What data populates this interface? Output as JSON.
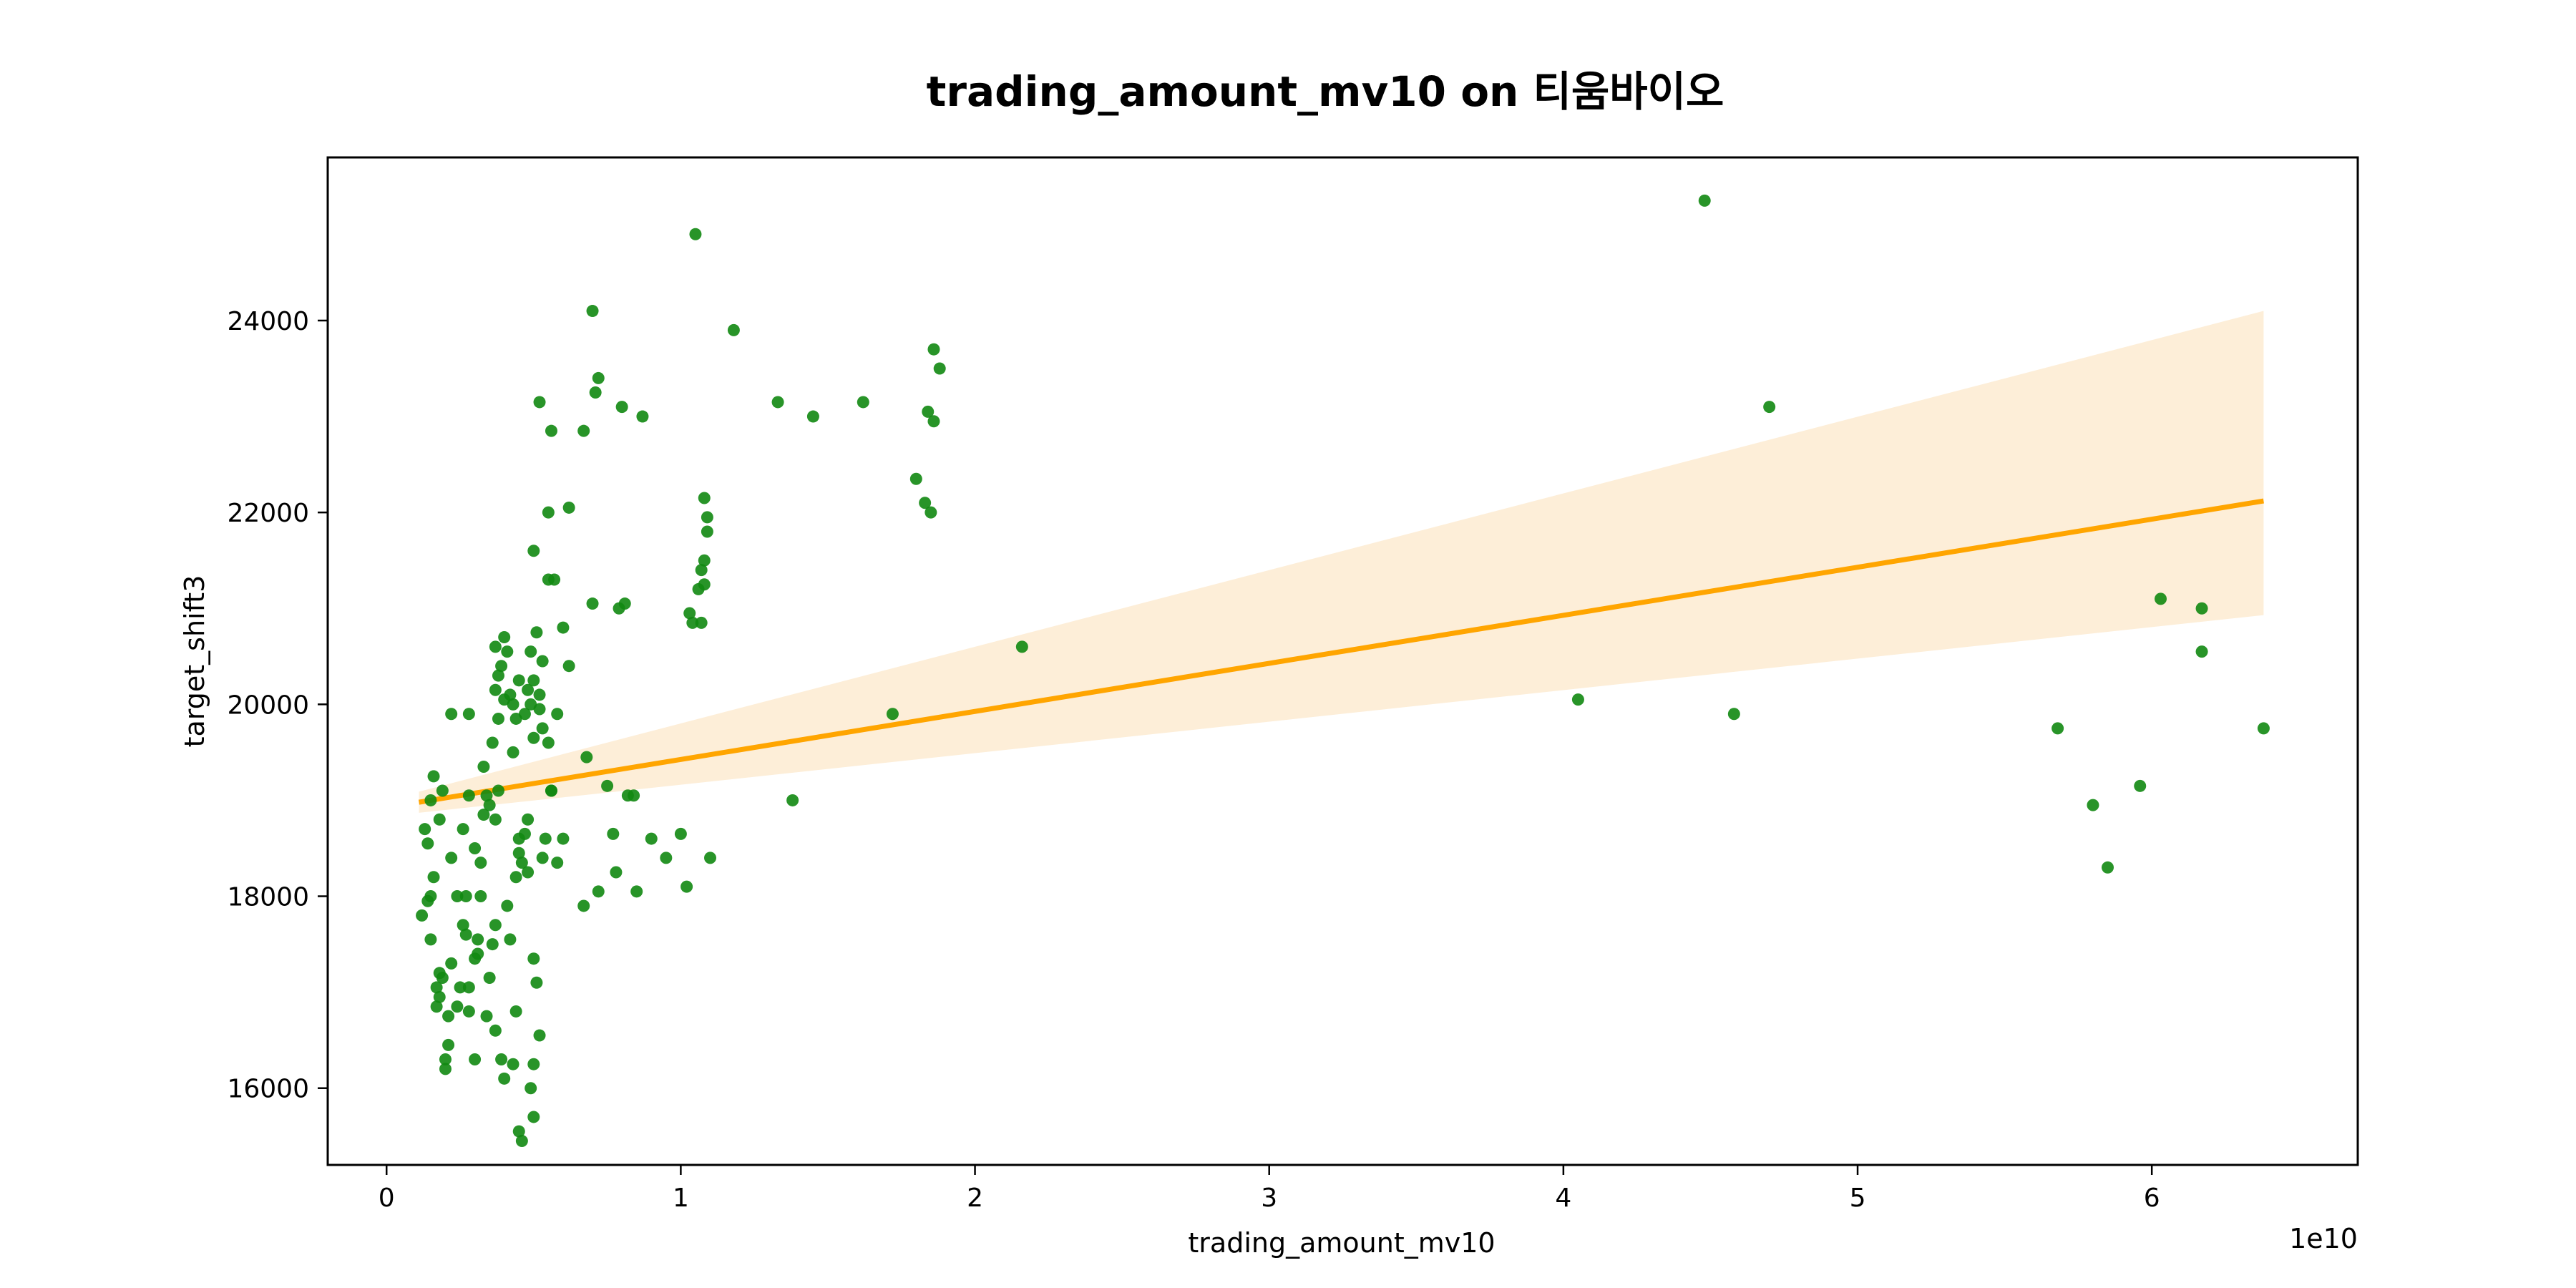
{
  "chart_data": {
    "type": "scatter",
    "title": "trading_amount_mv10 on 티움바이오",
    "xlabel": "trading_amount_mv10",
    "ylabel": "target_shift3",
    "x_offset_label": "1e10",
    "xlim": [
      -0.2,
      6.7
    ],
    "ylim": [
      15200,
      25700
    ],
    "x_ticks": [
      0,
      1,
      2,
      3,
      4,
      5,
      6
    ],
    "x_tick_labels": [
      "0",
      "1",
      "2",
      "3",
      "4",
      "5",
      "6"
    ],
    "y_ticks": [
      16000,
      18000,
      20000,
      22000,
      24000
    ],
    "y_tick_labels": [
      "16000",
      "18000",
      "20000",
      "22000",
      "24000"
    ],
    "grid": false,
    "colors": {
      "points": "#118811",
      "regression_line": "#ffa500",
      "confidence_band": "#fdeed8"
    },
    "regression": {
      "x": [
        0.11,
        6.38
      ],
      "y": [
        18980,
        22120
      ],
      "ci_lower": [
        18870,
        20930
      ],
      "ci_upper": [
        19090,
        24100
      ]
    },
    "points": [
      [
        0.13,
        18700
      ],
      [
        0.14,
        18550
      ],
      [
        0.12,
        17800
      ],
      [
        0.14,
        17950
      ],
      [
        0.15,
        18000
      ],
      [
        0.16,
        19250
      ],
      [
        0.15,
        17550
      ],
      [
        0.17,
        17050
      ],
      [
        0.18,
        16950
      ],
      [
        0.17,
        16850
      ],
      [
        0.19,
        17150
      ],
      [
        0.2,
        16300
      ],
      [
        0.2,
        16200
      ],
      [
        0.21,
        16450
      ],
      [
        0.22,
        17300
      ],
      [
        0.16,
        18200
      ],
      [
        0.18,
        18800
      ],
      [
        0.19,
        19100
      ],
      [
        0.15,
        19000
      ],
      [
        0.18,
        17200
      ],
      [
        0.21,
        16750
      ],
      [
        0.24,
        16850
      ],
      [
        0.25,
        17050
      ],
      [
        0.27,
        18000
      ],
      [
        0.22,
        18400
      ],
      [
        0.22,
        19900
      ],
      [
        0.28,
        19900
      ],
      [
        0.28,
        19050
      ],
      [
        0.26,
        18700
      ],
      [
        0.27,
        17600
      ],
      [
        0.28,
        17050
      ],
      [
        0.3,
        17350
      ],
      [
        0.31,
        17550
      ],
      [
        0.3,
        18500
      ],
      [
        0.32,
        18350
      ],
      [
        0.33,
        18850
      ],
      [
        0.35,
        18950
      ],
      [
        0.33,
        19350
      ],
      [
        0.31,
        17400
      ],
      [
        0.34,
        16750
      ],
      [
        0.32,
        18000
      ],
      [
        0.37,
        18800
      ],
      [
        0.38,
        19100
      ],
      [
        0.36,
        17500
      ],
      [
        0.37,
        17700
      ],
      [
        0.35,
        17150
      ],
      [
        0.37,
        16600
      ],
      [
        0.39,
        16300
      ],
      [
        0.4,
        16100
      ],
      [
        0.42,
        17550
      ],
      [
        0.41,
        17900
      ],
      [
        0.44,
        16800
      ],
      [
        0.43,
        16250
      ],
      [
        0.45,
        15550
      ],
      [
        0.46,
        15450
      ],
      [
        0.49,
        16000
      ],
      [
        0.5,
        15700
      ],
      [
        0.5,
        16250
      ],
      [
        0.52,
        16550
      ],
      [
        0.51,
        17100
      ],
      [
        0.5,
        17350
      ],
      [
        0.36,
        19600
      ],
      [
        0.38,
        19850
      ],
      [
        0.4,
        20050
      ],
      [
        0.37,
        20150
      ],
      [
        0.38,
        20300
      ],
      [
        0.39,
        20400
      ],
      [
        0.41,
        20550
      ],
      [
        0.37,
        20600
      ],
      [
        0.4,
        20700
      ],
      [
        0.42,
        20100
      ],
      [
        0.43,
        20000
      ],
      [
        0.44,
        19850
      ],
      [
        0.43,
        19500
      ],
      [
        0.45,
        20250
      ],
      [
        0.46,
        18350
      ],
      [
        0.47,
        18650
      ],
      [
        0.48,
        18800
      ],
      [
        0.47,
        19900
      ],
      [
        0.48,
        20150
      ],
      [
        0.5,
        19650
      ],
      [
        0.49,
        20000
      ],
      [
        0.5,
        20250
      ],
      [
        0.52,
        20100
      ],
      [
        0.51,
        20750
      ],
      [
        0.49,
        20550
      ],
      [
        0.53,
        20450
      ],
      [
        0.52,
        19950
      ],
      [
        0.53,
        19750
      ],
      [
        0.55,
        19600
      ],
      [
        0.56,
        19100
      ],
      [
        0.54,
        18600
      ],
      [
        0.53,
        18400
      ],
      [
        0.45,
        18600
      ],
      [
        0.48,
        18250
      ],
      [
        0.58,
        18350
      ],
      [
        0.6,
        18600
      ],
      [
        0.56,
        19100
      ],
      [
        0.6,
        20800
      ],
      [
        0.62,
        20400
      ],
      [
        0.58,
        19900
      ],
      [
        0.55,
        22000
      ],
      [
        0.56,
        22850
      ],
      [
        0.52,
        23150
      ],
      [
        0.5,
        21600
      ],
      [
        0.62,
        22050
      ],
      [
        0.55,
        21300
      ],
      [
        0.57,
        21300
      ],
      [
        0.67,
        17900
      ],
      [
        0.68,
        19450
      ],
      [
        0.7,
        21050
      ],
      [
        0.72,
        18050
      ],
      [
        0.75,
        19150
      ],
      [
        0.77,
        18650
      ],
      [
        0.78,
        18250
      ],
      [
        0.79,
        21000
      ],
      [
        0.81,
        21050
      ],
      [
        0.82,
        19050
      ],
      [
        0.84,
        19050
      ],
      [
        0.85,
        18050
      ],
      [
        0.67,
        22850
      ],
      [
        0.71,
        23250
      ],
      [
        0.72,
        23400
      ],
      [
        0.8,
        23100
      ],
      [
        0.7,
        24100
      ],
      [
        0.95,
        18400
      ],
      [
        0.9,
        18600
      ],
      [
        1.0,
        18650
      ],
      [
        1.02,
        18100
      ],
      [
        1.03,
        20950
      ],
      [
        1.04,
        20850
      ],
      [
        1.07,
        20850
      ],
      [
        1.06,
        21200
      ],
      [
        1.08,
        21250
      ],
      [
        1.07,
        21400
      ],
      [
        1.08,
        21500
      ],
      [
        1.09,
        21800
      ],
      [
        1.09,
        21950
      ],
      [
        1.08,
        22150
      ],
      [
        1.1,
        18400
      ],
      [
        0.87,
        23000
      ],
      [
        1.05,
        24900
      ],
      [
        1.18,
        23900
      ],
      [
        1.33,
        23150
      ],
      [
        1.38,
        19000
      ],
      [
        1.45,
        23000
      ],
      [
        1.62,
        23150
      ],
      [
        1.72,
        19900
      ],
      [
        1.8,
        22350
      ],
      [
        1.83,
        22100
      ],
      [
        1.84,
        23050
      ],
      [
        1.85,
        22000
      ],
      [
        1.86,
        22950
      ],
      [
        1.86,
        23700
      ],
      [
        1.88,
        23500
      ],
      [
        2.16,
        20600
      ],
      [
        4.05,
        20050
      ],
      [
        4.48,
        25250
      ],
      [
        4.58,
        19900
      ],
      [
        4.7,
        23100
      ],
      [
        5.68,
        19750
      ],
      [
        5.8,
        18950
      ],
      [
        5.85,
        18300
      ],
      [
        5.96,
        19150
      ],
      [
        6.03,
        21100
      ],
      [
        6.17,
        21000
      ],
      [
        6.17,
        20550
      ],
      [
        6.38,
        19750
      ],
      [
        0.28,
        16800
      ],
      [
        0.3,
        16300
      ],
      [
        0.24,
        18000
      ],
      [
        0.26,
        17700
      ],
      [
        0.34,
        19050
      ],
      [
        0.44,
        18200
      ],
      [
        0.45,
        18450
      ]
    ]
  }
}
